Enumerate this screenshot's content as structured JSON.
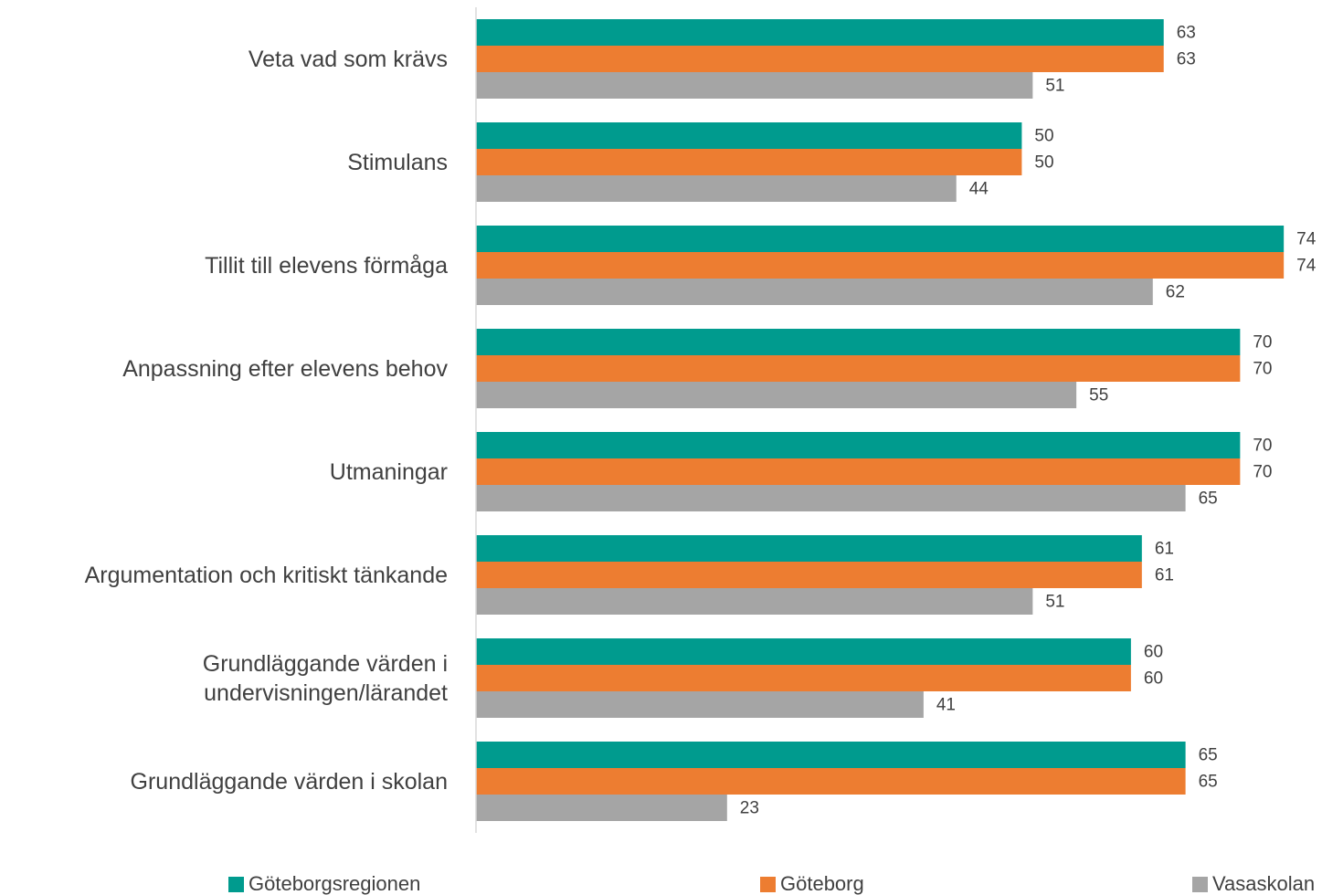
{
  "chart_data": {
    "type": "bar",
    "orientation": "horizontal",
    "categories": [
      "Veta vad som krävs",
      "Stimulans",
      "Tillit till elevens förmåga",
      "Anpassning efter elevens behov",
      "Utmaningar",
      "Argumentation och kritiskt tänkande",
      "Grundläggande värden i undervisningen/lärandet",
      "Grundläggande värden i skolan"
    ],
    "series": [
      {
        "name": "Göteborgsregionen",
        "color": "#009b8e",
        "values": [
          63,
          50,
          74,
          70,
          70,
          61,
          60,
          65
        ]
      },
      {
        "name": "Göteborg",
        "color": "#ed7d31",
        "values": [
          63,
          50,
          74,
          70,
          70,
          61,
          60,
          65
        ]
      },
      {
        "name": "Vasaskolan",
        "color": "#a5a5a5",
        "values": [
          51,
          44,
          62,
          55,
          65,
          51,
          41,
          23
        ]
      }
    ],
    "xlim": [
      0,
      77
    ],
    "legend": "bottom"
  }
}
